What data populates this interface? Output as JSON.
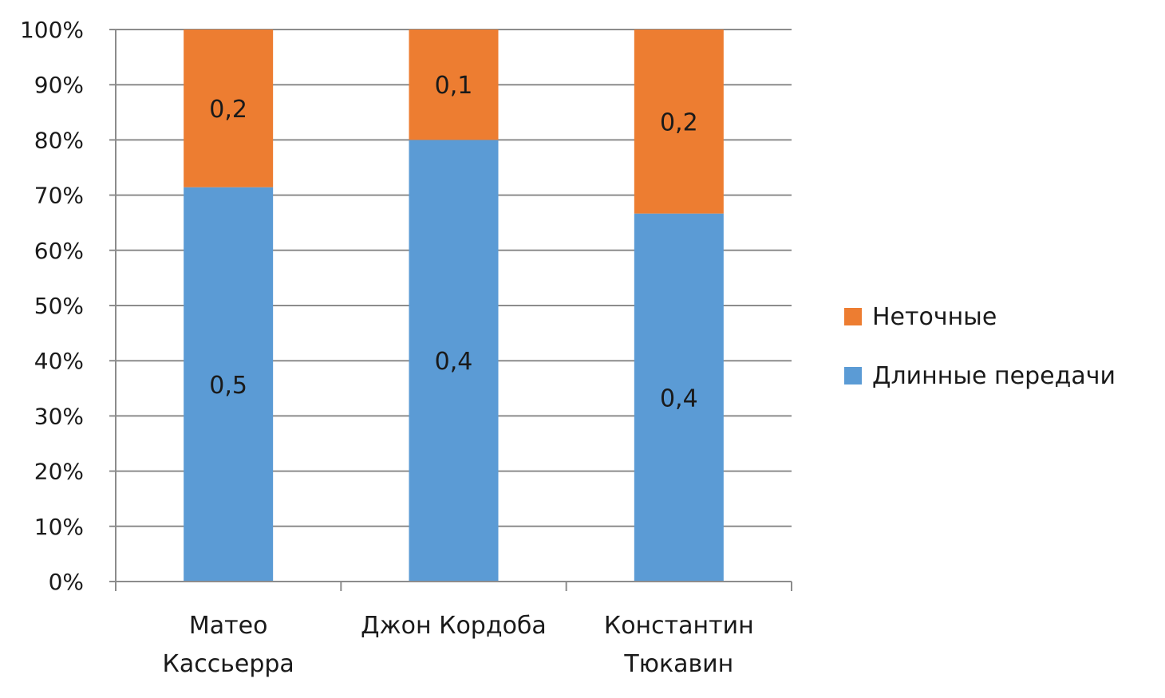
{
  "chart_data": {
    "type": "bar",
    "stacked": "percent",
    "categories": [
      [
        "Матео",
        "Кассьерра"
      ],
      [
        "Джон Кордоба"
      ],
      [
        "Константин",
        "Тюкавин"
      ]
    ],
    "series": [
      {
        "name": "Длинные передачи",
        "color": "#5b9bd5",
        "values": [
          0.5,
          0.4,
          0.4
        ],
        "labels": [
          "0,5",
          "0,4",
          "0,4"
        ]
      },
      {
        "name": "Неточные",
        "color": "#ed7d31",
        "values": [
          0.2,
          0.1,
          0.2
        ],
        "labels": [
          "0,2",
          "0,1",
          "0,2"
        ]
      }
    ],
    "yticks": [
      "0%",
      "10%",
      "20%",
      "30%",
      "40%",
      "50%",
      "60%",
      "70%",
      "80%",
      "90%",
      "100%"
    ],
    "ylim": [
      0,
      100
    ],
    "grid": true,
    "legend": "right",
    "legend_order": [
      "Неточные",
      "Длинные передачи"
    ]
  }
}
